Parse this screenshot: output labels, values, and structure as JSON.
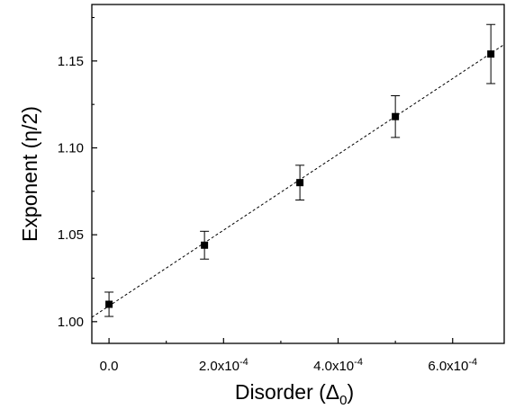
{
  "chart_data": {
    "type": "scatter",
    "xlabel_main": "Disorder (Δ",
    "xlabel_sub": "0",
    "xlabel_close": ")",
    "ylabel": "Exponent (η/2)",
    "xlim": [
      -3e-05,
      0.00069
    ],
    "ylim": [
      0.9875,
      1.1825
    ],
    "x_ticks": [
      {
        "value": 0.0,
        "label": "0.0"
      },
      {
        "value": 0.0002,
        "label": "2.0x10",
        "exp": "-4"
      },
      {
        "value": 0.0004,
        "label": "4.0x10",
        "exp": "-4"
      },
      {
        "value": 0.0006,
        "label": "6.0x10",
        "exp": "-4"
      }
    ],
    "y_ticks": [
      {
        "value": 1.0,
        "label": "1.00"
      },
      {
        "value": 1.05,
        "label": "1.05"
      },
      {
        "value": 1.1,
        "label": "1.10"
      },
      {
        "value": 1.15,
        "label": "1.15"
      }
    ],
    "x_minor_ticks": [
      0.0001,
      0.0003,
      0.0005
    ],
    "y_minor_ticks": [
      1.025,
      1.075,
      1.125,
      1.175
    ],
    "points": [
      {
        "x": 0.0,
        "y": 1.01,
        "err": 0.007
      },
      {
        "x": 0.0001667,
        "y": 1.044,
        "err": 0.008
      },
      {
        "x": 0.0003333,
        "y": 1.08,
        "err": 0.01
      },
      {
        "x": 0.0005,
        "y": 1.118,
        "err": 0.012
      },
      {
        "x": 0.0006667,
        "y": 1.154,
        "err": 0.017
      }
    ],
    "fit_line": {
      "style": "dashed",
      "x": [
        -3e-05,
        0.00069
      ],
      "y": [
        1.0025,
        1.1595
      ]
    },
    "grid": false,
    "legend": "none"
  }
}
